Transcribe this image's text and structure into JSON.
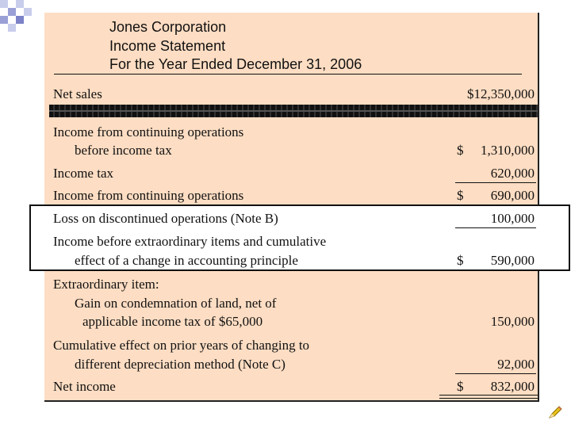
{
  "header": {
    "company": "Jones Corporation",
    "statement": "Income Statement",
    "period": "For the Year Ended December 31, 2006"
  },
  "rows": {
    "net_sales": {
      "label": "Net sales",
      "amount": "$12,350,000"
    },
    "income_cont_pre_1": "Income from continuing operations",
    "income_cont_pre_2": "before income tax",
    "income_cont_pre_amt": "1,310,000",
    "income_tax": {
      "label": "Income tax",
      "amount": "620,000"
    },
    "income_cont": {
      "label": "Income from continuing operations",
      "amount": "690,000"
    },
    "loss_disc": {
      "label": "Loss on discontinued operations (Note B)",
      "amount": "100,000"
    },
    "income_before_1": "Income before extraordinary items and cumulative",
    "income_before_2": "effect of a change in accounting principle",
    "income_before_amt": "590,000",
    "extra_1": "Extraordinary item:",
    "extra_2": "Gain on condemnation of land, net of",
    "extra_3": "applicable income tax of $65,000",
    "extra_amt": "150,000",
    "cumul_1": "Cumulative effect on prior years of changing to",
    "cumul_2": "different depreciation method (Note C)",
    "cumul_amt": "92,000",
    "net_income": {
      "label": "Net income",
      "amount": "832,000"
    },
    "dollar": "$"
  },
  "colors": {
    "panel_bg": "#fdddc3",
    "accent_squares": [
      "#c9cdec",
      "#9aa0d6",
      "#7b82c8"
    ]
  },
  "icons": {
    "corner": "decorative-squares-icon",
    "pencil": "pencil-icon"
  }
}
